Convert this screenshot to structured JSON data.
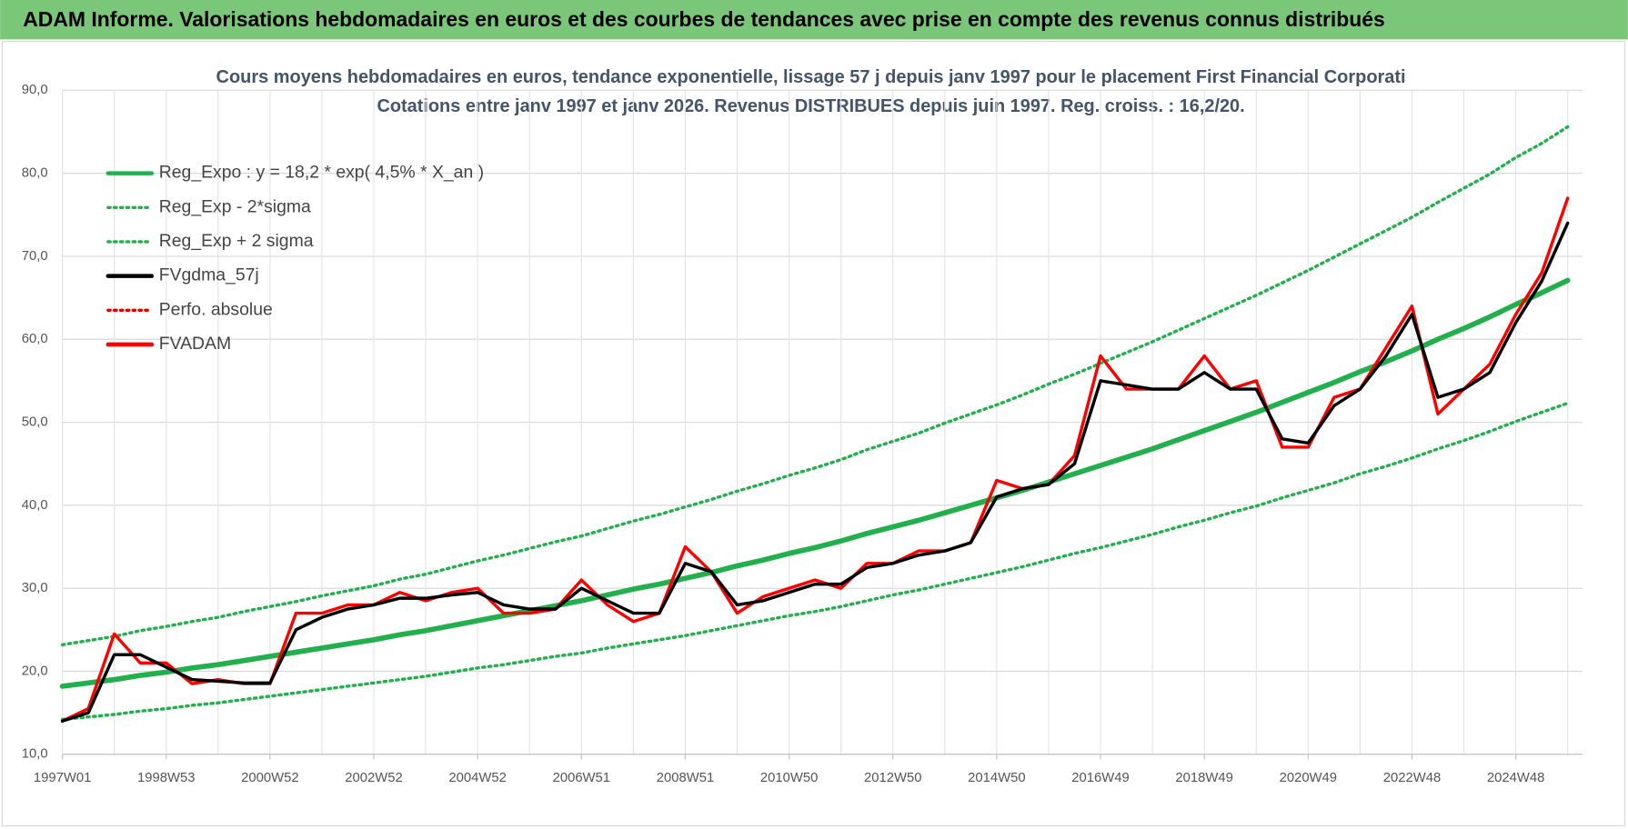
{
  "header": {
    "title": "ADAM Informe. Valorisations hebdomadaires en euros et des courbes de tendances avec prise en compte des revenus connus distribués"
  },
  "chart_data": {
    "type": "line",
    "title": "Cours moyens hebdomadaires en euros, tendance exponentielle, lissage 57 j depuis janv 1997 pour le placement First Financial Corporati",
    "subtitle": "Cotations entre janv 1997 et janv 2026. Revenus DISTRIBUES depuis juin 1997. Reg. croiss. : 16,2/20.",
    "categories": [
      "1997W01",
      null,
      null,
      null,
      "1998W53",
      null,
      null,
      null,
      "2000W52",
      null,
      null,
      null,
      "2002W52",
      null,
      null,
      null,
      "2004W52",
      null,
      null,
      null,
      "2006W51",
      null,
      null,
      null,
      "2008W51",
      null,
      null,
      null,
      "2010W50",
      null,
      null,
      null,
      "2012W50",
      null,
      null,
      null,
      "2014W50",
      null,
      null,
      null,
      "2016W49",
      null,
      null,
      null,
      "2018W49",
      null,
      null,
      null,
      "2020W49",
      null,
      null,
      null,
      "2022W48",
      null,
      null,
      null,
      "2024W48",
      null,
      null
    ],
    "ylim": [
      10,
      90
    ],
    "yticks": [
      {
        "value": 10,
        "label": "10,0"
      },
      {
        "value": 20,
        "label": "20,0"
      },
      {
        "value": 30,
        "label": "30,0"
      },
      {
        "value": 40,
        "label": "40,0"
      },
      {
        "value": 50,
        "label": "50,0"
      },
      {
        "value": 60,
        "label": "60,0"
      },
      {
        "value": 70,
        "label": "70,0"
      },
      {
        "value": 80,
        "label": "80,0"
      },
      {
        "value": 90,
        "label": "90,0"
      }
    ],
    "grid": true,
    "legend": "top-left",
    "series": [
      {
        "name": "Reg_Expo : y = 18,2 * exp( 4,5% *  X_an )",
        "color": "#21b04b",
        "line_style": "solid",
        "values": [
          18.2,
          18.6,
          19.0,
          19.5,
          19.9,
          20.4,
          20.8,
          21.3,
          21.8,
          22.3,
          22.8,
          23.3,
          23.8,
          24.4,
          24.9,
          25.5,
          26.1,
          26.7,
          27.3,
          27.9,
          28.5,
          29.2,
          29.9,
          30.5,
          31.2,
          31.9,
          32.7,
          33.4,
          34.2,
          34.9,
          35.7,
          36.6,
          37.4,
          38.2,
          39.1,
          40.0,
          40.9,
          41.8,
          42.8,
          43.8,
          44.8,
          45.8,
          46.8,
          47.9,
          49.0,
          50.1,
          51.2,
          52.4,
          53.6,
          54.8,
          56.1,
          57.3,
          58.6,
          60.0,
          61.3,
          62.7,
          64.2,
          65.6,
          67.1
        ]
      },
      {
        "name": "Reg_Exp - 2*sigma",
        "color": "#21b04b",
        "line_style": "dotted",
        "values": [
          14.2,
          14.5,
          14.8,
          15.2,
          15.5,
          15.9,
          16.2,
          16.6,
          17.0,
          17.4,
          17.8,
          18.2,
          18.6,
          19.0,
          19.4,
          19.9,
          20.4,
          20.8,
          21.3,
          21.8,
          22.2,
          22.8,
          23.3,
          23.8,
          24.3,
          24.9,
          25.5,
          26.1,
          26.7,
          27.2,
          27.8,
          28.5,
          29.2,
          29.8,
          30.5,
          31.2,
          31.9,
          32.6,
          33.4,
          34.2,
          34.9,
          35.7,
          36.5,
          37.4,
          38.2,
          39.1,
          39.9,
          40.9,
          41.8,
          42.7,
          43.8,
          44.7,
          45.7,
          46.8,
          47.8,
          48.9,
          50.1,
          51.2,
          52.3
        ]
      },
      {
        "name": "Reg_Exp + 2 sigma",
        "color": "#21b04b",
        "line_style": "dotted",
        "values": [
          23.2,
          23.7,
          24.2,
          24.9,
          25.4,
          26.0,
          26.5,
          27.2,
          27.8,
          28.4,
          29.1,
          29.7,
          30.3,
          31.1,
          31.7,
          32.5,
          33.3,
          34.0,
          34.8,
          35.6,
          36.3,
          37.2,
          38.1,
          38.9,
          39.8,
          40.7,
          41.7,
          42.6,
          43.6,
          44.5,
          45.5,
          46.7,
          47.7,
          48.7,
          49.9,
          51.0,
          52.1,
          53.3,
          54.6,
          55.8,
          57.1,
          58.4,
          59.7,
          61.1,
          62.5,
          63.9,
          65.3,
          66.8,
          68.3,
          69.9,
          71.5,
          73.1,
          74.7,
          76.5,
          78.2,
          79.9,
          81.9,
          83.6,
          85.6
        ]
      },
      {
        "name": "FVgdma_57j",
        "color": "#000000",
        "line_style": "solid",
        "values": [
          14,
          15,
          22,
          22,
          20.5,
          19,
          18.8,
          18.6,
          18.6,
          25,
          26.5,
          27.5,
          28,
          28.8,
          28.8,
          29.2,
          29.5,
          28,
          27.5,
          27.5,
          30,
          28.5,
          27,
          27,
          33,
          32,
          28,
          28.5,
          29.5,
          30.5,
          30.5,
          32.5,
          33,
          34,
          34.5,
          35.5,
          41,
          42,
          42.5,
          45,
          55,
          54.5,
          54,
          54,
          56,
          54,
          54,
          48,
          47.5,
          52,
          54,
          58,
          63,
          53,
          54,
          56,
          62,
          67,
          74
        ]
      },
      {
        "name": "Perfo. absolue",
        "color": "#e00000",
        "line_style": "dotted",
        "values": [
          null,
          null,
          null,
          null,
          null,
          null,
          null,
          null,
          null,
          null,
          null,
          null,
          null,
          null,
          null,
          null,
          null,
          null,
          null,
          null,
          null,
          null,
          null,
          null,
          null,
          null,
          null,
          null,
          null,
          null,
          null,
          null,
          null,
          null,
          null,
          null,
          null,
          null,
          null,
          null,
          null,
          null,
          null,
          null,
          null,
          null,
          null,
          null,
          null,
          null,
          null,
          null,
          null,
          null,
          null,
          null,
          null,
          null,
          null
        ]
      },
      {
        "name": "FVADAM",
        "color": "#ff0000",
        "line_style": "solid",
        "values": [
          14,
          15.5,
          24.5,
          21,
          21,
          18.5,
          19,
          18.5,
          18.5,
          27,
          27,
          28,
          28,
          29.5,
          28.5,
          29.5,
          30,
          27,
          27,
          27.5,
          31,
          28,
          26,
          27,
          35,
          32,
          27,
          29,
          30,
          31,
          30,
          33,
          33,
          34.5,
          34.5,
          35.5,
          43,
          42,
          42.5,
          46,
          58,
          54,
          54,
          54,
          58,
          54,
          55,
          47,
          47,
          53,
          54,
          59,
          64,
          51,
          54,
          57,
          63,
          68,
          77
        ]
      }
    ]
  }
}
